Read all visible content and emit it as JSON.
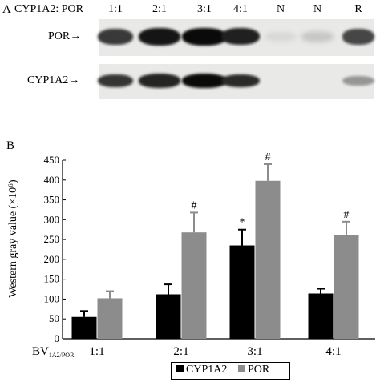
{
  "panel_a": {
    "label": "A",
    "header": "CYP1A2: POR",
    "lanes": [
      "1:1",
      "2:1",
      "3:1",
      "4:1",
      "N",
      "N",
      "R"
    ],
    "rows": [
      {
        "label": "POR",
        "arrow": "→",
        "band_intensity": [
          0.78,
          0.95,
          1.0,
          0.9,
          0.04,
          0.12,
          0.72
        ]
      },
      {
        "label": "CYP1A2",
        "arrow": "→",
        "band_intensity": [
          0.8,
          0.88,
          1.0,
          0.85,
          0.0,
          0.0,
          0.35
        ]
      }
    ]
  },
  "panel_b": {
    "label": "B",
    "x_axis_prefix": "BV",
    "x_axis_subscript": "1A2/POR"
  },
  "chart_data": {
    "type": "bar",
    "categories": [
      "1:1",
      "2:1",
      "3:1",
      "4:1"
    ],
    "ylabel": "Western gray value (×10⁶)",
    "ylim": [
      0,
      450
    ],
    "yticks": [
      0,
      50,
      100,
      150,
      200,
      250,
      300,
      350,
      400,
      450
    ],
    "grid": false,
    "legend_position": "bottom-center",
    "series": [
      {
        "name": "CYP1A2",
        "color": "#000000",
        "values": [
          55,
          112,
          235,
          114
        ],
        "errors": [
          15,
          25,
          40,
          12
        ],
        "markers": [
          "",
          "",
          "*",
          ""
        ]
      },
      {
        "name": "POR",
        "color": "#8c8c8c",
        "values": [
          102,
          268,
          398,
          262
        ],
        "errors": [
          18,
          50,
          42,
          33
        ],
        "markers": [
          "",
          "#",
          "#",
          "#"
        ]
      }
    ]
  }
}
